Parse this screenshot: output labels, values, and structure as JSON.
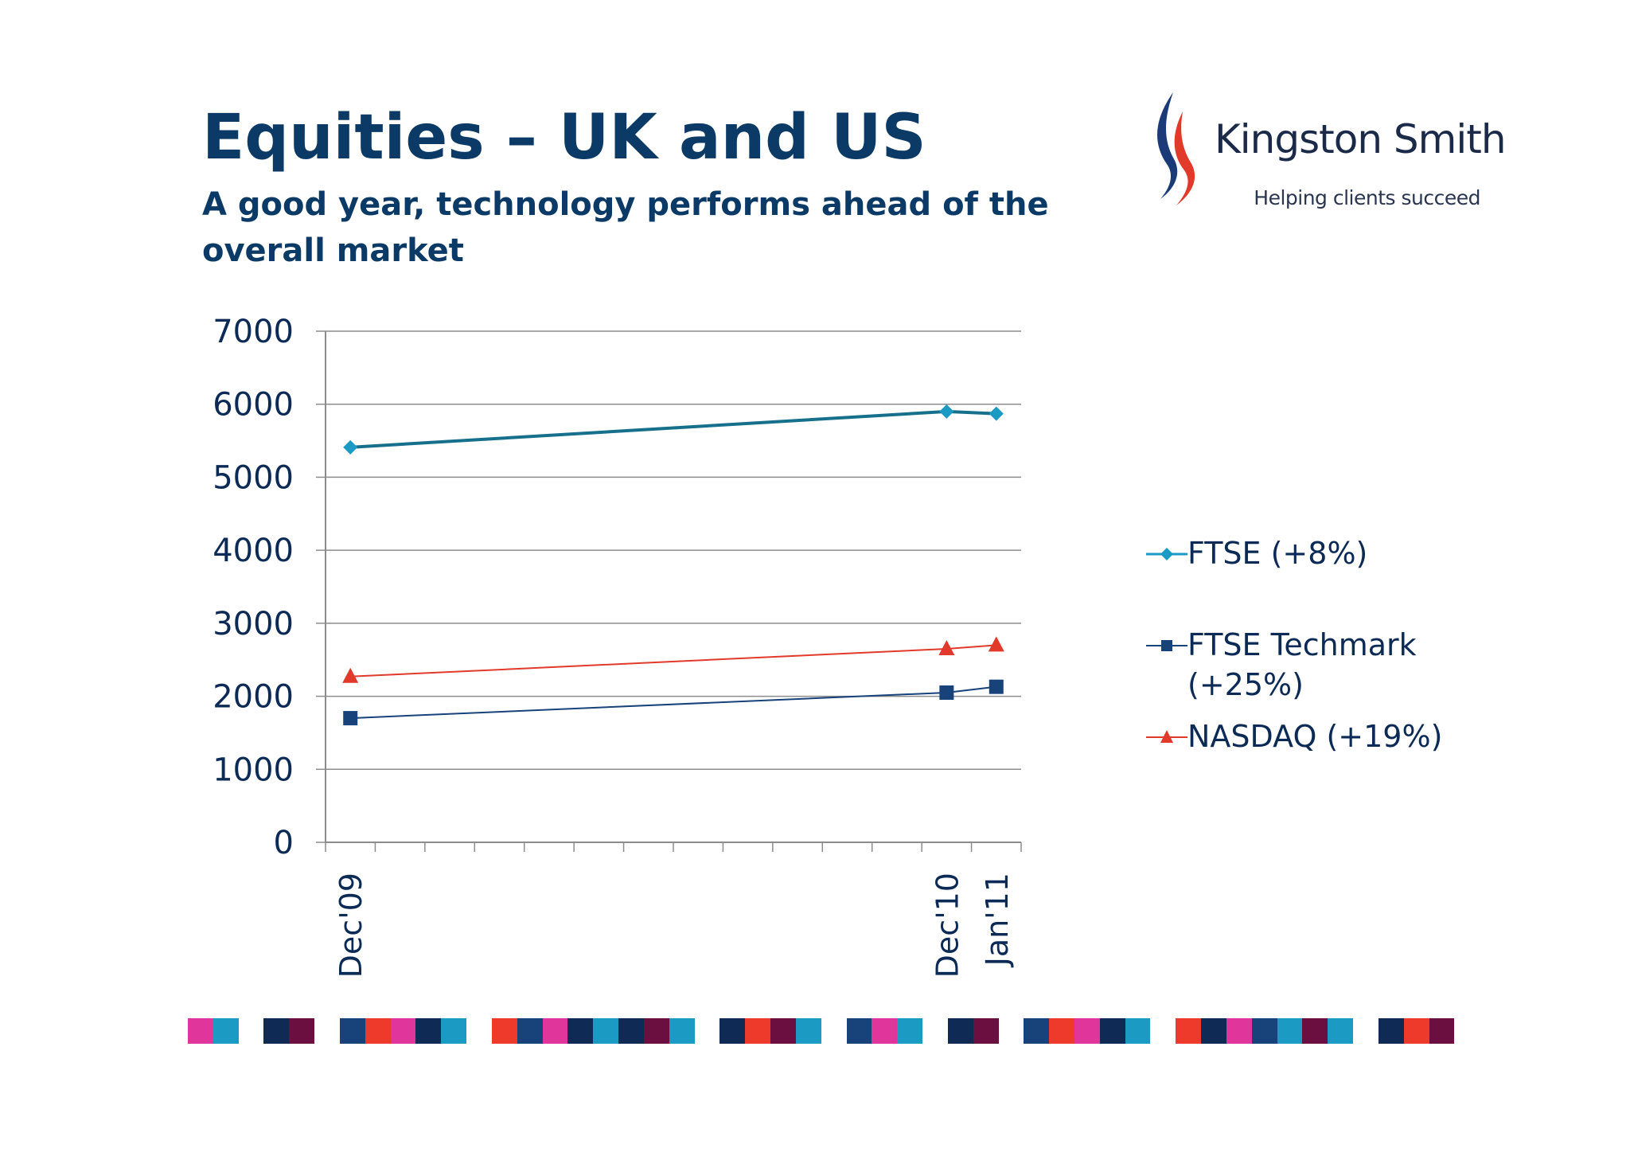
{
  "slide": {
    "title": "Equities – UK and US",
    "subtitle": "A good year, technology performs ahead of the overall market"
  },
  "logo": {
    "name": "Kingston Smith",
    "tagline": "Helping clients succeed"
  },
  "colors": {
    "title": "#0b3a66",
    "ftse": "#1b9ac4",
    "ftse_line": "#16708c",
    "techmark": "#17427a",
    "nasdaq": "#e23a2a",
    "grid": "#8c8c8c"
  },
  "chart_data": {
    "type": "line",
    "title": "",
    "xlabel": "",
    "ylabel": "",
    "ylim": [
      0,
      7000
    ],
    "yticks": [
      "0",
      "1000",
      "2000",
      "3000",
      "4000",
      "5000",
      "6000",
      "7000"
    ],
    "x_range": [
      "Dec'09",
      "Jan'11"
    ],
    "x_labels": [
      "Dec'09",
      "Dec'10",
      "Jan'11"
    ],
    "x": [
      "Dec'09",
      "Dec'10",
      "Jan'11"
    ],
    "grid": true,
    "legend": "right",
    "series": [
      {
        "name": "FTSE (+8%)",
        "marker": "diamond",
        "values": [
          5410,
          5900,
          5870
        ]
      },
      {
        "name": "FTSE Techmark (+25%)",
        "marker": "square",
        "values": [
          1700,
          2050,
          2130
        ]
      },
      {
        "name": "NASDAQ (+19%)",
        "marker": "triangle",
        "values": [
          2270,
          2650,
          2700
        ]
      }
    ]
  },
  "footer_stripes": [
    "#e0359a",
    "#1b9ac4",
    "#ffffff",
    "#0e2a55",
    "#6b0f40",
    "#ffffff",
    "#17427a",
    "#ee3a2a",
    "#e0359a",
    "#0e2a55",
    "#1b9ac4",
    "#ffffff",
    "#ee3a2a",
    "#17427a",
    "#e0359a",
    "#0e2a55",
    "#1b9ac4",
    "#0e2a55",
    "#6b0f40",
    "#1b9ac4",
    "#ffffff",
    "#0e2a55",
    "#ee3a2a",
    "#6b0f40",
    "#1b9ac4",
    "#ffffff",
    "#17427a",
    "#e0359a",
    "#1b9ac4",
    "#ffffff",
    "#0e2a55",
    "#6b0f40",
    "#ffffff",
    "#17427a",
    "#ee3a2a",
    "#e0359a",
    "#0e2a55",
    "#1b9ac4",
    "#ffffff",
    "#ee3a2a",
    "#0e2a55",
    "#e0359a",
    "#17427a",
    "#1b9ac4",
    "#6b0f40",
    "#1b9ac4",
    "#ffffff",
    "#0e2a55",
    "#ee3a2a",
    "#6b0f40"
  ]
}
